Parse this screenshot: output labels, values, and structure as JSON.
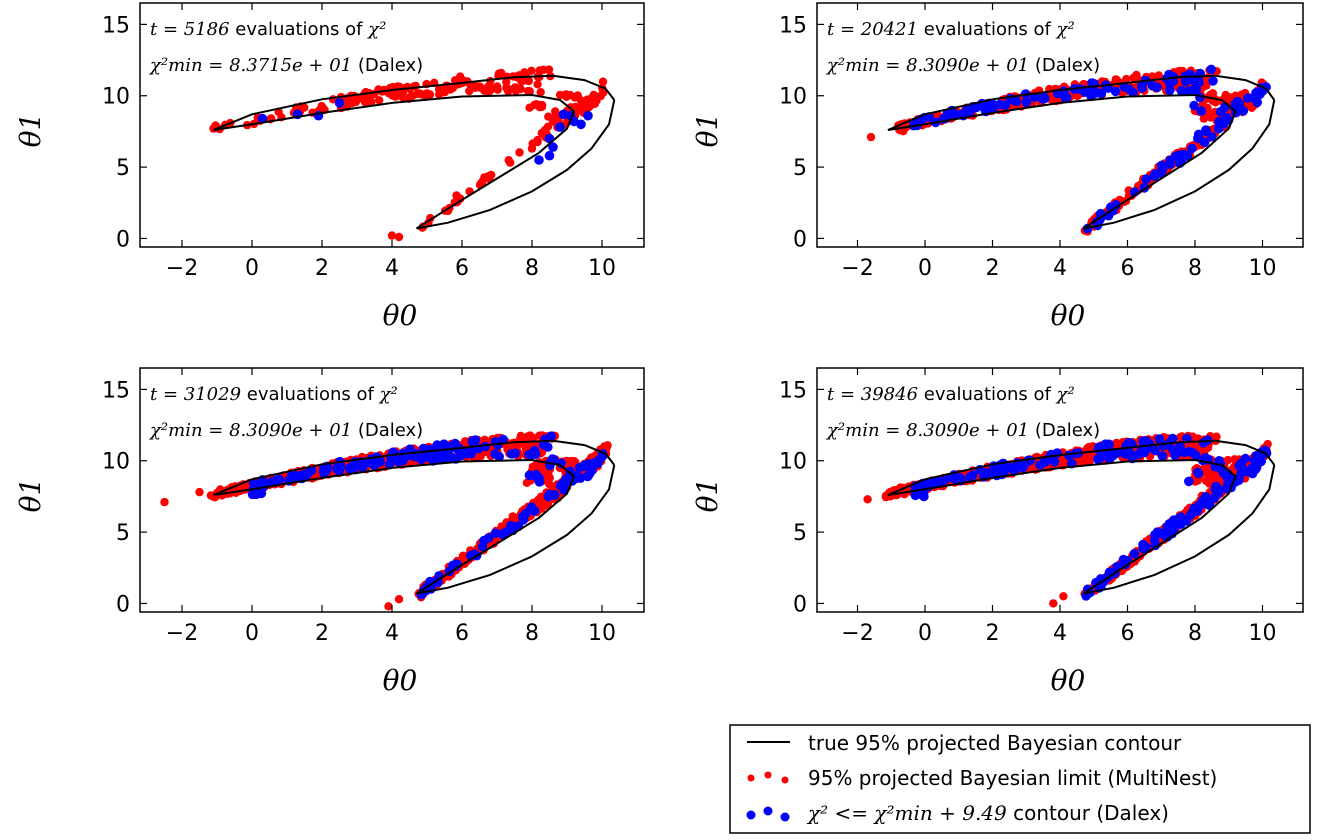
{
  "chart_data": [
    {
      "type": "scatter",
      "xlabel": "θ0",
      "ylabel": "θ1",
      "xlim": [
        -3.2,
        11.2
      ],
      "ylim": [
        -0.6,
        16.5
      ],
      "xticks": [
        -2,
        0,
        2,
        4,
        6,
        8,
        10
      ],
      "yticks": [
        0,
        5,
        10,
        15
      ],
      "xtick_labels": [
        "−2",
        "0",
        "2",
        "4",
        "6",
        "8",
        "10"
      ],
      "ytick_labels": [
        "0",
        "5",
        "10",
        "15"
      ],
      "annotation": {
        "t_prefix": "t = 5186",
        "t_suffix": " evaluations of ",
        "t_chi": "χ²",
        "chi_lhs": "χ²min = 8.3715e + 01",
        "chi_suffix": " (Dalex)"
      },
      "series": [
        {
          "count": 260,
          "coverage": 0.45,
          "xmin": -1.1,
          "ymin": 0.0,
          "outliers": [
            [
              4.0,
              0.2
            ],
            [
              4.2,
              0.1
            ],
            [
              -1.1,
              7.7
            ]
          ]
        },
        {
          "count": 14,
          "coverage": 0.35,
          "xmin": 0.2,
          "focus": [
            [
              0.3,
              8.4
            ],
            [
              1.3,
              8.7
            ],
            [
              2.5,
              9.5
            ],
            [
              8.5,
              7.0
            ],
            [
              8.6,
              6.4
            ],
            [
              9.2,
              8.2
            ],
            [
              9.6,
              8.6
            ],
            [
              8.9,
              8.7
            ],
            [
              8.2,
              5.5
            ],
            [
              8.5,
              5.8
            ],
            [
              9.4,
              8.0
            ],
            [
              1.9,
              8.6
            ],
            [
              8.8,
              7.8
            ],
            [
              9.1,
              8.6
            ]
          ]
        }
      ]
    },
    {
      "type": "scatter",
      "xlabel": "θ0",
      "ylabel": "θ1",
      "xlim": [
        -3.2,
        11.2
      ],
      "ylim": [
        -0.6,
        16.5
      ],
      "xticks": [
        -2,
        0,
        2,
        4,
        6,
        8,
        10
      ],
      "yticks": [
        0,
        5,
        10,
        15
      ],
      "xtick_labels": [
        "−2",
        "0",
        "2",
        "4",
        "6",
        "8",
        "10"
      ],
      "ytick_labels": [
        "0",
        "5",
        "10",
        "15"
      ],
      "annotation": {
        "t_prefix": "t = 20421",
        "t_suffix": " evaluations of ",
        "t_chi": "χ²",
        "chi_lhs": "χ²min = 8.3090e + 01",
        "chi_suffix": " (Dalex)"
      },
      "series": [
        {
          "count": 520,
          "coverage": 1.0,
          "xmin": -0.8,
          "ymin": 0.8,
          "outliers": [
            [
              -1.6,
              7.1
            ]
          ]
        },
        {
          "count": 150,
          "coverage": 1.0,
          "xmin": -0.5
        }
      ]
    },
    {
      "type": "scatter",
      "xlabel": "θ0",
      "ylabel": "θ1",
      "xlim": [
        -3.2,
        11.2
      ],
      "ylim": [
        -0.6,
        16.5
      ],
      "xticks": [
        -2,
        0,
        2,
        4,
        6,
        8,
        10
      ],
      "yticks": [
        0,
        5,
        10,
        15
      ],
      "xtick_labels": [
        "−2",
        "0",
        "2",
        "4",
        "6",
        "8",
        "10"
      ],
      "ytick_labels": [
        "0",
        "5",
        "10",
        "15"
      ],
      "annotation": {
        "t_prefix": "t = 31029",
        "t_suffix": " evaluations of ",
        "t_chi": "χ²",
        "chi_lhs": "χ²min = 8.3090e + 01",
        "chi_suffix": " (Dalex)"
      },
      "series": [
        {
          "count": 820,
          "coverage": 1.0,
          "xmin": -1.3,
          "ymin": 0.0,
          "outliers": [
            [
              -2.5,
              7.1
            ],
            [
              -1.5,
              7.8
            ],
            [
              3.9,
              -0.2
            ],
            [
              4.2,
              0.3
            ]
          ]
        },
        {
          "count": 210,
          "coverage": 1.0,
          "xmin": 0.0
        }
      ]
    },
    {
      "type": "scatter",
      "xlabel": "θ0",
      "ylabel": "θ1",
      "xlim": [
        -3.2,
        11.2
      ],
      "ylim": [
        -0.6,
        16.5
      ],
      "xticks": [
        -2,
        0,
        2,
        4,
        6,
        8,
        10
      ],
      "yticks": [
        0,
        5,
        10,
        15
      ],
      "xtick_labels": [
        "−2",
        "0",
        "2",
        "4",
        "6",
        "8",
        "10"
      ],
      "ytick_labels": [
        "0",
        "5",
        "10",
        "15"
      ],
      "annotation": {
        "t_prefix": "t = 39846",
        "t_suffix": " evaluations of ",
        "t_chi": "χ²",
        "chi_lhs": "χ²min = 8.3090e + 01",
        "chi_suffix": " (Dalex)"
      },
      "series": [
        {
          "count": 900,
          "coverage": 1.0,
          "xmin": -1.7,
          "ymin": 0.0,
          "outliers": [
            [
              -1.7,
              7.3
            ],
            [
              3.8,
              0.0
            ],
            [
              4.1,
              0.5
            ]
          ]
        },
        {
          "count": 230,
          "coverage": 1.0,
          "xmin": -0.3
        }
      ]
    }
  ],
  "contour": {
    "upper": [
      [
        -1.1,
        7.6
      ],
      [
        0,
        8.7
      ],
      [
        2,
        9.75
      ],
      [
        4,
        10.4
      ],
      [
        6,
        10.9
      ],
      [
        7.5,
        11.3
      ],
      [
        8.6,
        11.4
      ],
      [
        9.5,
        11.1
      ],
      [
        10.1,
        10.5
      ],
      [
        10.35,
        9.7
      ]
    ],
    "lower": [
      [
        -1.1,
        7.6
      ],
      [
        0,
        8.0
      ],
      [
        2,
        8.8
      ],
      [
        4,
        9.5
      ],
      [
        6,
        9.95
      ],
      [
        8.0,
        10.05
      ],
      [
        8.8,
        9.7
      ],
      [
        9.2,
        8.9
      ],
      [
        9.0,
        7.7
      ],
      [
        8.2,
        6.0
      ],
      [
        7.0,
        4.2
      ],
      [
        5.8,
        2.4
      ],
      [
        4.7,
        0.7
      ]
    ],
    "right": [
      [
        10.35,
        9.7
      ],
      [
        10.2,
        8.0
      ],
      [
        9.7,
        6.3
      ],
      [
        9.0,
        4.8
      ],
      [
        8.0,
        3.3
      ],
      [
        6.8,
        2.0
      ],
      [
        5.6,
        1.1
      ],
      [
        4.7,
        0.7
      ]
    ]
  },
  "legend": {
    "line_label": "true 95% projected Bayesian contour",
    "red_label": "95% projected Bayesian limit (MultiNest)",
    "blue_pre": "χ² <= χ²min + 9.49",
    "blue_post": " contour (Dalex)",
    "line_color": "#000000",
    "red_color": "#ff0000",
    "blue_color": "#0000ff"
  }
}
